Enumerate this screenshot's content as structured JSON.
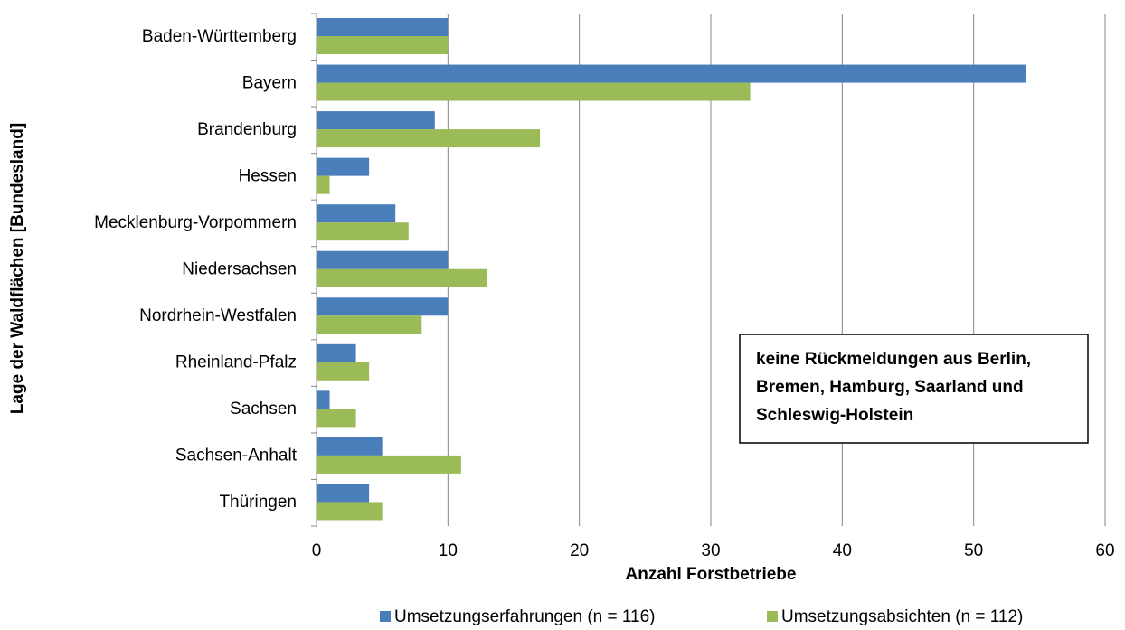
{
  "chart_data": {
    "type": "hbar",
    "y_axis_label": "Lage der Waldflächen [Bundesland]",
    "x_axis_label": "Anzahl Forstbetriebe",
    "categories": [
      "Baden-Württemberg",
      "Bayern",
      "Brandenburg",
      "Hessen",
      "Mecklenburg-Vorpommern",
      "Niedersachsen",
      "Nordrhein-Westfalen",
      "Rheinland-Pfalz",
      "Sachsen",
      "Sachsen-Anhalt",
      "Thüringen"
    ],
    "series": [
      {
        "name": "Umsetzungserfahrungen (n = 116)",
        "color": "#4a7ebb",
        "values": [
          10,
          54,
          9,
          4,
          6,
          10,
          10,
          3,
          1,
          5,
          4
        ]
      },
      {
        "name": "Umsetzungsabsichten (n = 112)",
        "color": "#9bbb59",
        "values": [
          10,
          33,
          17,
          1,
          7,
          13,
          8,
          4,
          3,
          11,
          5
        ]
      }
    ],
    "xlim": [
      0,
      60
    ],
    "xticks": [
      0,
      10,
      20,
      30,
      40,
      50,
      60
    ],
    "grid": true,
    "legend": "bottom",
    "annotation": [
      "keine Rückmeldungen aus Berlin,",
      "Bremen, Hamburg, Saarland und",
      "Schleswig-Holstein"
    ]
  }
}
